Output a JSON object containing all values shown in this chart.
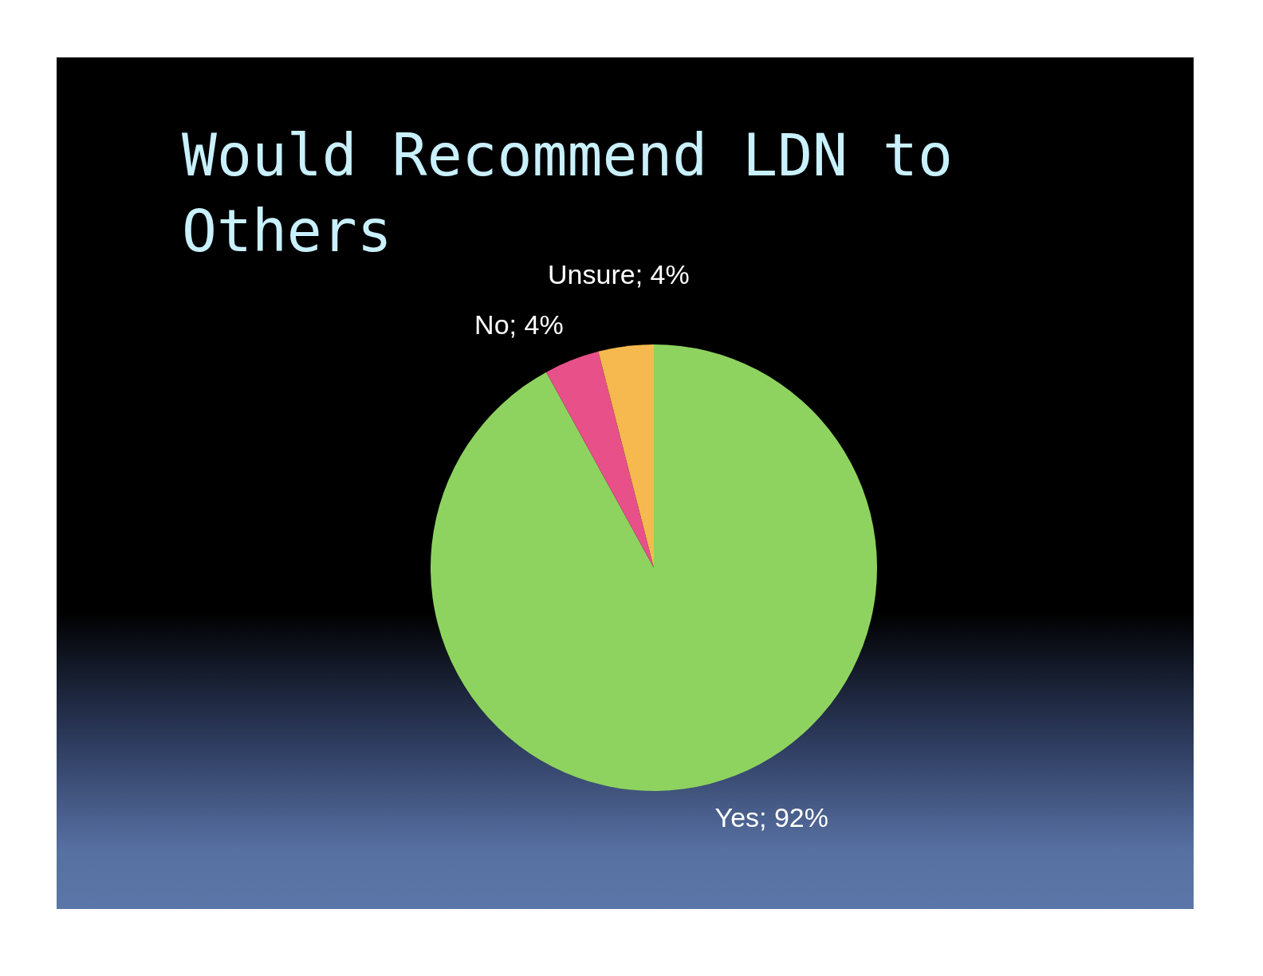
{
  "chart_data": {
    "type": "pie",
    "title": "Would Recommend LDN to Others",
    "categories": [
      "Yes",
      "No",
      "Unsure"
    ],
    "values": [
      92,
      4,
      4
    ],
    "colors": [
      "#8ed35f",
      "#e8508a",
      "#f5b94f"
    ],
    "value_labels": [
      "92%",
      "4%",
      "4%"
    ]
  }
}
